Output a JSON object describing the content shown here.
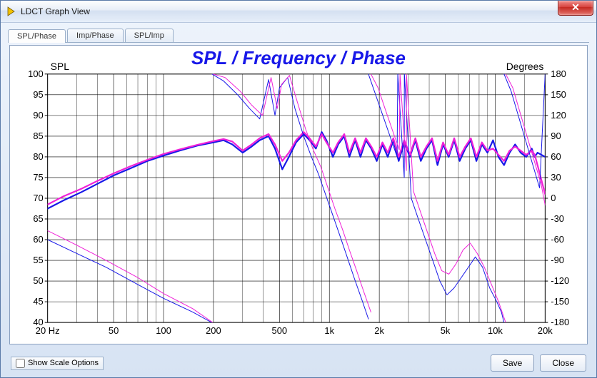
{
  "window": {
    "title": "LDCT Graph View",
    "close_glyph": "✕"
  },
  "tabs": [
    {
      "label": "SPL/Phase",
      "active": true
    },
    {
      "label": "Imp/Phase",
      "active": false
    },
    {
      "label": "SPL/Imp",
      "active": false
    }
  ],
  "chart": {
    "title": "SPL / Frequency / Phase",
    "title_color": "#1818e8",
    "title_fontsize": 26,
    "title_fontweight": "bold",
    "title_fontstyle": "italic",
    "background": "#ffffff",
    "grid_color": "#000000",
    "grid_stroke": 0.6,
    "axis_label_fontsize": 14,
    "tick_fontsize": 13,
    "x": {
      "scale": "log",
      "min": 20,
      "max": 20000,
      "label_ticks": [
        {
          "v": 20,
          "t": "20 Hz"
        },
        {
          "v": 50,
          "t": "50"
        },
        {
          "v": 100,
          "t": "100"
        },
        {
          "v": 200,
          "t": "200"
        },
        {
          "v": 500,
          "t": "500"
        },
        {
          "v": 1000,
          "t": "1k"
        },
        {
          "v": 2000,
          "t": "2k"
        },
        {
          "v": 5000,
          "t": "5k"
        },
        {
          "v": 10000,
          "t": "10k"
        },
        {
          "v": 20000,
          "t": "20k"
        }
      ],
      "minor_ticks": [
        30,
        40,
        60,
        70,
        80,
        90,
        300,
        400,
        600,
        700,
        800,
        900,
        3000,
        4000,
        6000,
        7000,
        8000,
        9000,
        15000
      ]
    },
    "y_left": {
      "label": "SPL",
      "min": 40,
      "max": 100,
      "step": 5
    },
    "y_right": {
      "label": "Degrees",
      "min": -180,
      "max": 180,
      "step": 30
    },
    "series": [
      {
        "name": "spl_blue",
        "axis": "left",
        "color": "#1818e8",
        "width": 2.2,
        "points": [
          [
            20,
            67.5
          ],
          [
            25,
            69.5
          ],
          [
            32,
            71.5
          ],
          [
            40,
            73.5
          ],
          [
            50,
            75.5
          ],
          [
            63,
            77.2
          ],
          [
            80,
            79
          ],
          [
            100,
            80.3
          ],
          [
            125,
            81.5
          ],
          [
            160,
            82.7
          ],
          [
            200,
            83.5
          ],
          [
            230,
            84
          ],
          [
            260,
            83
          ],
          [
            300,
            81
          ],
          [
            340,
            82.5
          ],
          [
            380,
            84
          ],
          [
            430,
            85
          ],
          [
            470,
            82
          ],
          [
            520,
            77
          ],
          [
            570,
            80
          ],
          [
            630,
            83.5
          ],
          [
            700,
            85.5
          ],
          [
            760,
            84
          ],
          [
            830,
            82
          ],
          [
            900,
            86
          ],
          [
            960,
            84
          ],
          [
            1050,
            80
          ],
          [
            1130,
            83
          ],
          [
            1230,
            85
          ],
          [
            1320,
            80
          ],
          [
            1430,
            84
          ],
          [
            1540,
            80
          ],
          [
            1660,
            84
          ],
          [
            1790,
            82
          ],
          [
            1930,
            79
          ],
          [
            2090,
            83
          ],
          [
            2250,
            80
          ],
          [
            2430,
            84
          ],
          [
            2620,
            79
          ],
          [
            2830,
            83.5
          ],
          [
            3060,
            80
          ],
          [
            3300,
            84
          ],
          [
            3560,
            79
          ],
          [
            3850,
            82
          ],
          [
            4160,
            84
          ],
          [
            4490,
            78
          ],
          [
            4850,
            83
          ],
          [
            5240,
            80
          ],
          [
            5660,
            84
          ],
          [
            6110,
            79
          ],
          [
            6600,
            82
          ],
          [
            7130,
            84
          ],
          [
            7700,
            79
          ],
          [
            8310,
            83
          ],
          [
            8980,
            81
          ],
          [
            9700,
            84
          ],
          [
            10470,
            80
          ],
          [
            11310,
            78
          ],
          [
            12210,
            81
          ],
          [
            13190,
            83
          ],
          [
            14250,
            81
          ],
          [
            15390,
            80
          ],
          [
            16620,
            82
          ],
          [
            17320,
            80
          ],
          [
            18000,
            81
          ],
          [
            20000,
            80
          ]
        ]
      },
      {
        "name": "spl_magenta",
        "axis": "left",
        "color": "#f020d8",
        "width": 2.2,
        "points": [
          [
            20,
            68.5
          ],
          [
            25,
            70.5
          ],
          [
            32,
            72.3
          ],
          [
            40,
            74.2
          ],
          [
            50,
            76
          ],
          [
            63,
            77.7
          ],
          [
            80,
            79.3
          ],
          [
            100,
            80.7
          ],
          [
            125,
            81.8
          ],
          [
            160,
            82.9
          ],
          [
            200,
            83.8
          ],
          [
            230,
            84.3
          ],
          [
            260,
            83.7
          ],
          [
            300,
            81.5
          ],
          [
            340,
            83
          ],
          [
            380,
            84.5
          ],
          [
            430,
            85.5
          ],
          [
            470,
            83
          ],
          [
            520,
            79
          ],
          [
            570,
            81
          ],
          [
            630,
            84
          ],
          [
            700,
            86
          ],
          [
            760,
            84.5
          ],
          [
            830,
            82.5
          ],
          [
            900,
            85.5
          ],
          [
            960,
            83.5
          ],
          [
            1050,
            81
          ],
          [
            1130,
            83.5
          ],
          [
            1230,
            85.5
          ],
          [
            1320,
            81
          ],
          [
            1430,
            84.5
          ],
          [
            1540,
            81
          ],
          [
            1660,
            84.5
          ],
          [
            1790,
            82.5
          ],
          [
            1930,
            80
          ],
          [
            2090,
            83.5
          ],
          [
            2250,
            81
          ],
          [
            2430,
            84.5
          ],
          [
            2620,
            80
          ],
          [
            2830,
            84
          ],
          [
            3060,
            80.5
          ],
          [
            3300,
            84.5
          ],
          [
            3560,
            80
          ],
          [
            3850,
            82.5
          ],
          [
            4160,
            84.5
          ],
          [
            4490,
            79
          ],
          [
            4850,
            83.5
          ],
          [
            5240,
            80.5
          ],
          [
            5660,
            84.5
          ],
          [
            6110,
            80
          ],
          [
            6600,
            82.5
          ],
          [
            7130,
            84.5
          ],
          [
            7700,
            80
          ],
          [
            8310,
            83.5
          ],
          [
            8980,
            81.5
          ],
          [
            9700,
            82
          ],
          [
            10470,
            80.5
          ],
          [
            11310,
            79
          ],
          [
            12210,
            81.5
          ],
          [
            13190,
            82.5
          ],
          [
            14250,
            81.5
          ],
          [
            15390,
            80.5
          ],
          [
            16620,
            81.5
          ],
          [
            17320,
            80.5
          ],
          [
            18000,
            78
          ],
          [
            20000,
            71
          ]
        ]
      },
      {
        "name": "phase_blue",
        "axis": "right",
        "color": "#1818e8",
        "width": 1.0,
        "points": [
          [
            20,
            -60
          ],
          [
            30,
            -80
          ],
          [
            45,
            -100
          ],
          [
            70,
            -125
          ],
          [
            100,
            -145
          ],
          [
            150,
            -165
          ],
          [
            195,
            -180
          ],
          [
            196,
            180
          ],
          [
            230,
            170
          ],
          [
            280,
            150
          ],
          [
            330,
            130
          ],
          [
            380,
            115
          ],
          [
            430,
            172
          ],
          [
            470,
            120
          ],
          [
            500,
            160
          ],
          [
            560,
            175
          ],
          [
            620,
            130
          ],
          [
            700,
            90
          ],
          [
            780,
            60
          ],
          [
            860,
            35
          ],
          [
            950,
            5
          ],
          [
            1050,
            -25
          ],
          [
            1160,
            -55
          ],
          [
            1280,
            -85
          ],
          [
            1410,
            -115
          ],
          [
            1560,
            -145
          ],
          [
            1720,
            -175
          ],
          [
            1721,
            180
          ],
          [
            1900,
            150
          ],
          [
            2100,
            120
          ],
          [
            2320,
            90
          ],
          [
            2560,
            60
          ],
          [
            2585,
            180
          ],
          [
            2586,
            -180
          ],
          [
            2587,
            180
          ],
          [
            2830,
            30
          ],
          [
            2831,
            180
          ],
          [
            2832,
            -180
          ],
          [
            2833,
            180
          ],
          [
            3120,
            0
          ],
          [
            3440,
            -30
          ],
          [
            3800,
            -60
          ],
          [
            4200,
            -90
          ],
          [
            4640,
            -120
          ],
          [
            5120,
            -140
          ],
          [
            5650,
            -130
          ],
          [
            6240,
            -115
          ],
          [
            6890,
            -100
          ],
          [
            7600,
            -85
          ],
          [
            8390,
            -100
          ],
          [
            9260,
            -130
          ],
          [
            10220,
            -150
          ],
          [
            10900,
            -165
          ],
          [
            11300,
            -180
          ],
          [
            11301,
            180
          ],
          [
            12480,
            155
          ],
          [
            13770,
            120
          ],
          [
            15200,
            85
          ],
          [
            16780,
            50
          ],
          [
            18510,
            15
          ],
          [
            20000,
            180
          ]
        ]
      },
      {
        "name": "phase_magenta",
        "axis": "right",
        "color": "#f020d8",
        "width": 1.0,
        "points": [
          [
            20,
            -47
          ],
          [
            30,
            -68
          ],
          [
            45,
            -90
          ],
          [
            70,
            -115
          ],
          [
            100,
            -138
          ],
          [
            150,
            -160
          ],
          [
            198,
            -180
          ],
          [
            199,
            180
          ],
          [
            235,
            175
          ],
          [
            290,
            155
          ],
          [
            340,
            135
          ],
          [
            395,
            120
          ],
          [
            445,
            175
          ],
          [
            485,
            130
          ],
          [
            515,
            165
          ],
          [
            575,
            178
          ],
          [
            640,
            140
          ],
          [
            720,
            100
          ],
          [
            800,
            70
          ],
          [
            890,
            45
          ],
          [
            980,
            15
          ],
          [
            1080,
            -15
          ],
          [
            1200,
            -45
          ],
          [
            1320,
            -75
          ],
          [
            1460,
            -105
          ],
          [
            1610,
            -135
          ],
          [
            1780,
            -165
          ],
          [
            1781,
            180
          ],
          [
            1965,
            160
          ],
          [
            2165,
            130
          ],
          [
            2390,
            100
          ],
          [
            2640,
            70
          ],
          [
            2665,
            180
          ],
          [
            2666,
            -180
          ],
          [
            2667,
            180
          ],
          [
            2915,
            40
          ],
          [
            2916,
            180
          ],
          [
            2917,
            -180
          ],
          [
            2918,
            180
          ],
          [
            3215,
            10
          ],
          [
            3545,
            -20
          ],
          [
            3910,
            -50
          ],
          [
            4315,
            -80
          ],
          [
            4760,
            -105
          ],
          [
            5255,
            -110
          ],
          [
            5800,
            -95
          ],
          [
            6400,
            -75
          ],
          [
            7065,
            -65
          ],
          [
            7795,
            -80
          ],
          [
            8605,
            -100
          ],
          [
            9495,
            -125
          ],
          [
            10480,
            -150
          ],
          [
            11200,
            -170
          ],
          [
            11565,
            -180
          ],
          [
            11566,
            180
          ],
          [
            12765,
            160
          ],
          [
            14090,
            125
          ],
          [
            15550,
            90
          ],
          [
            17165,
            55
          ],
          [
            18940,
            20
          ],
          [
            20000,
            -10
          ]
        ]
      }
    ]
  },
  "footer": {
    "scale_options_label": "Show Scale Options",
    "save_label": "Save",
    "close_label": "Close"
  }
}
